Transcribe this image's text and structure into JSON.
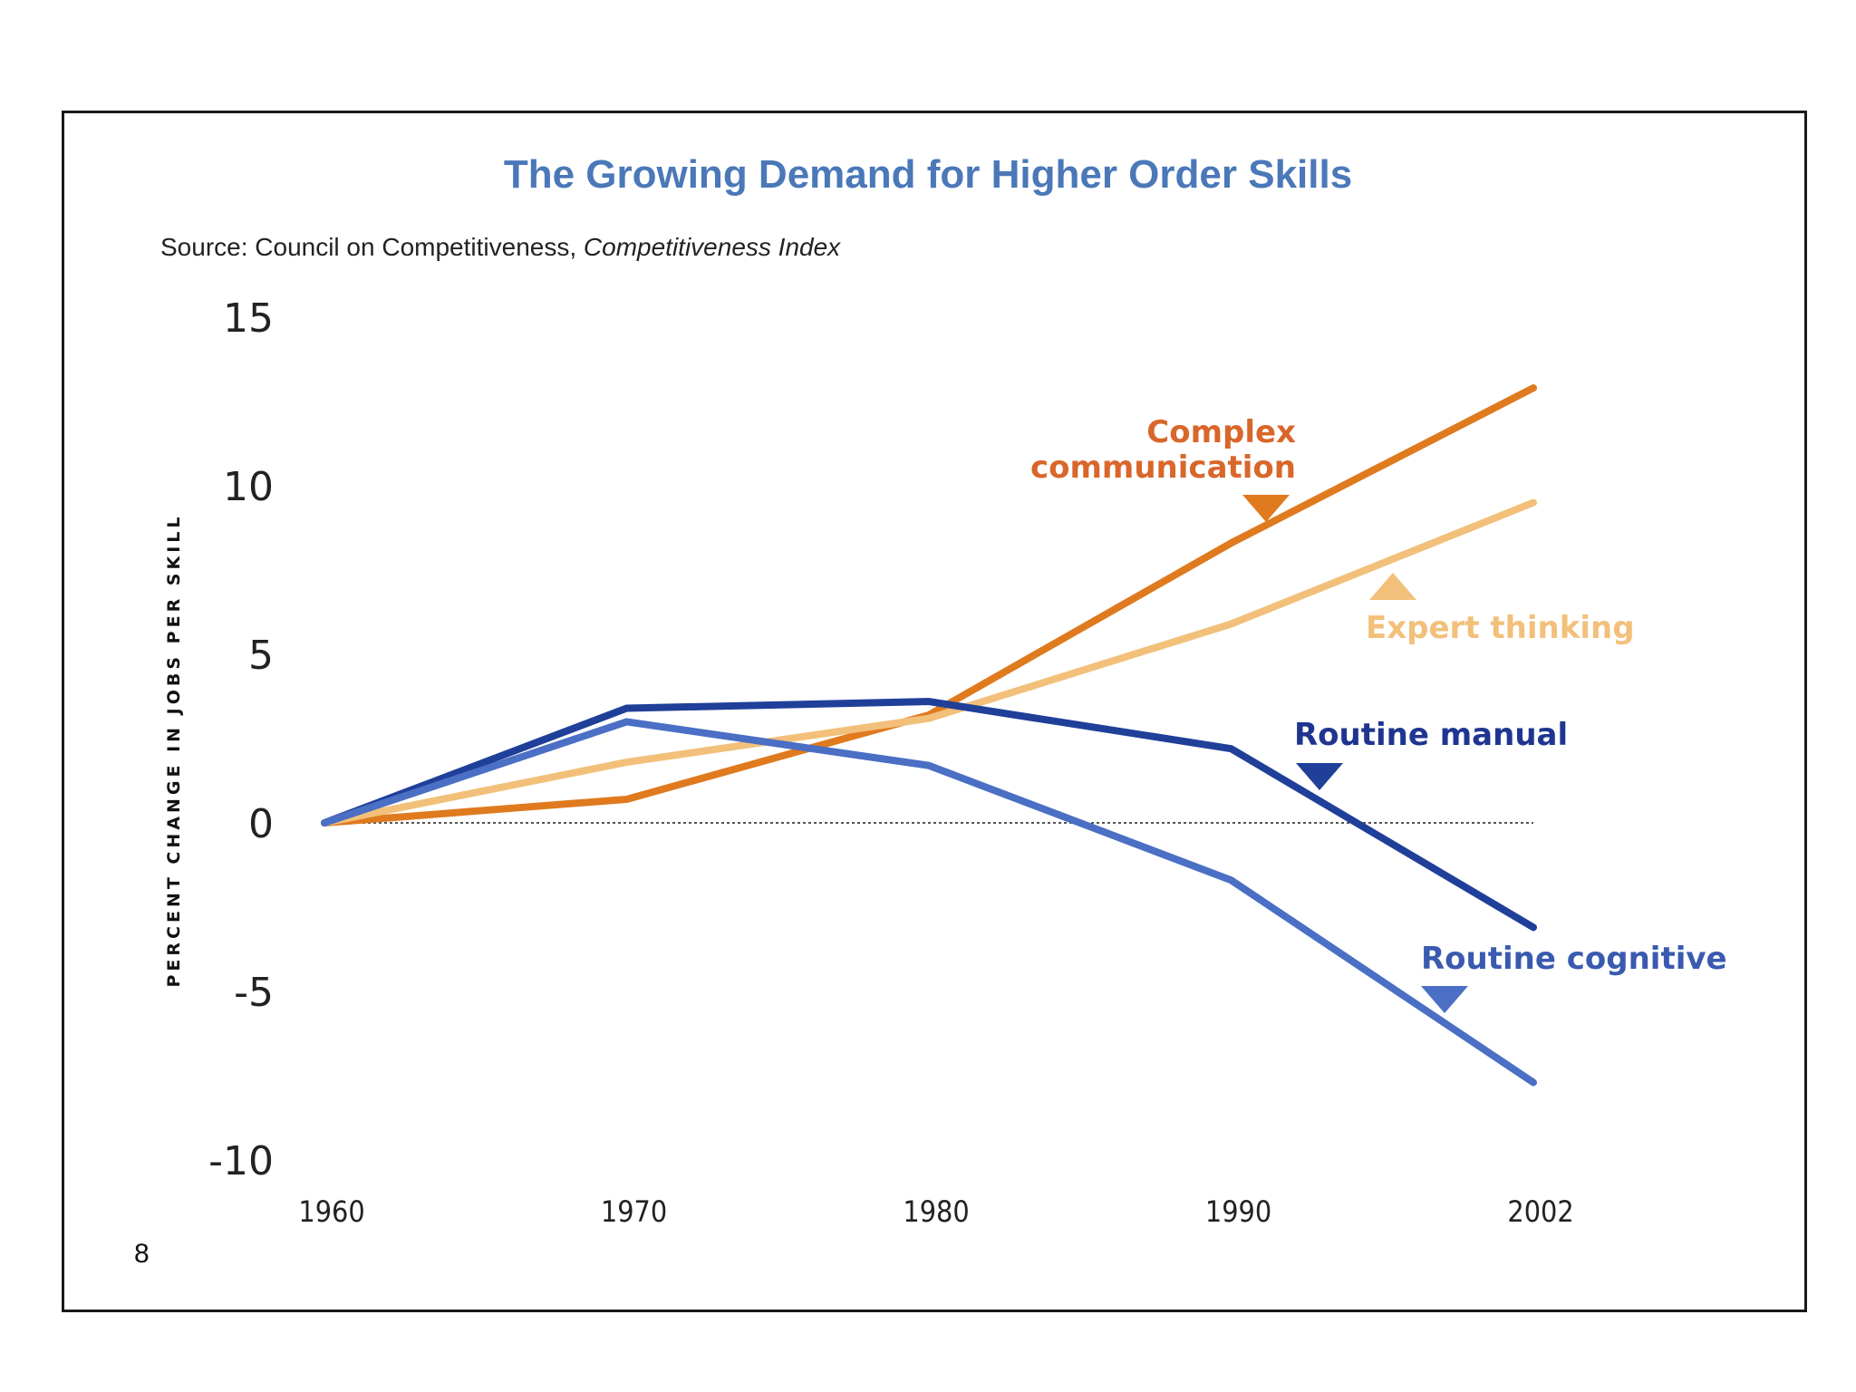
{
  "slide": {
    "title": "The Growing Demand for Higher Order Skills",
    "source_prefix": "Source: Council on Competitiveness, ",
    "source_italic": "Competitiveness Index",
    "page_number": "8"
  },
  "chart_data": {
    "type": "line",
    "title": "The Growing Demand for Higher Order Skills",
    "xlabel": "",
    "ylabel": "PERCENT CHANGE IN JOBS PER SKILL",
    "x": [
      "1960",
      "1970",
      "1980",
      "1990",
      "2002"
    ],
    "ylim": [
      -10,
      15
    ],
    "yticks": [
      "15",
      "10",
      "5",
      "0",
      "-5",
      "-10"
    ],
    "grid": false,
    "zero_line": "dotted",
    "series": [
      {
        "name": "Complex communication",
        "values": [
          0,
          0.7,
          3.2,
          8.3,
          12.9
        ],
        "color": "#e07a1f"
      },
      {
        "name": "Expert thinking",
        "values": [
          0,
          1.8,
          3.1,
          5.9,
          9.5
        ],
        "color": "#f2c07a"
      },
      {
        "name": "Routine manual",
        "values": [
          0,
          3.4,
          3.6,
          2.2,
          -3.1
        ],
        "color": "#1f3f99"
      },
      {
        "name": "Routine cognitive",
        "values": [
          0,
          3.0,
          1.7,
          -1.7,
          -7.7
        ],
        "color": "#4a6fc4"
      }
    ]
  }
}
